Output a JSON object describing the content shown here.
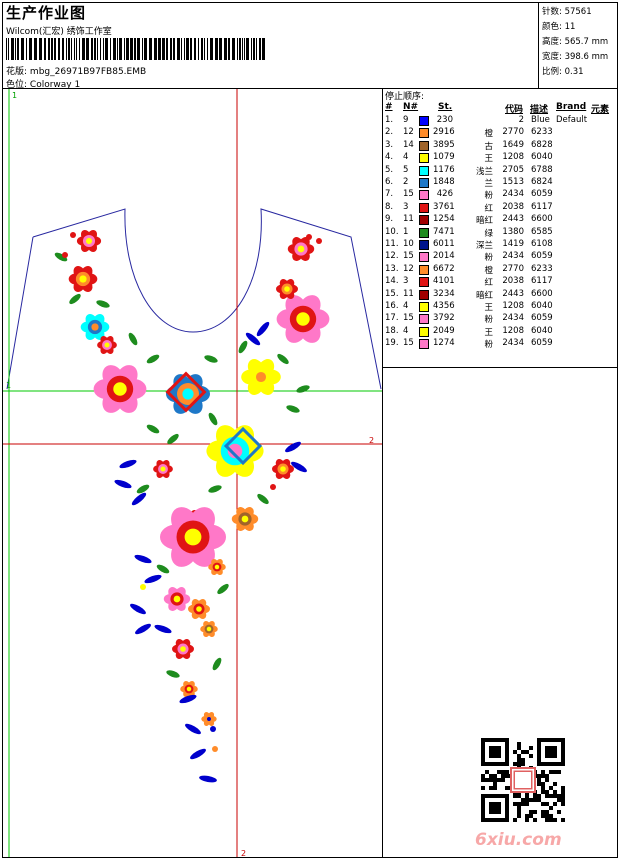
{
  "header": {
    "title": "生产作业图",
    "company": "Wilcom(汇宏) 绣饰工作室",
    "file_label": "花版:",
    "file_name": "mbg_26971B97FB85.EMB",
    "color_label": "色位:",
    "color_name": "Colorway 1"
  },
  "stats": [
    {
      "label": "针数:",
      "value": "57561"
    },
    {
      "label": "颜色:",
      "value": "11"
    },
    {
      "label": "高度:",
      "value": "565.7 mm"
    },
    {
      "label": "宽度:",
      "value": "398.6 mm"
    },
    {
      "label": "比例:",
      "value": "0.31"
    }
  ],
  "stop_list": {
    "title": "停止顺序:",
    "headers": {
      "num": "#",
      "needle": "N#",
      "st": "St.",
      "code": "代码",
      "desc": "描述",
      "brand": "Brand",
      "elem": "元素"
    },
    "rows": [
      {
        "n": "1.",
        "needle": "9",
        "color": "#0000ff",
        "st": "230",
        "name": "",
        "code": "2",
        "desc": "Blue",
        "brand": "Default"
      },
      {
        "n": "2.",
        "needle": "12",
        "color": "#ff8c2a",
        "st": "2916",
        "name": "橙",
        "code": "2770",
        "desc": "6233",
        "brand": ""
      },
      {
        "n": "3.",
        "needle": "14",
        "color": "#a0642a",
        "st": "3895",
        "name": "古",
        "code": "1649",
        "desc": "6828",
        "brand": ""
      },
      {
        "n": "4.",
        "needle": "4",
        "color": "#ffff00",
        "st": "1079",
        "name": "王",
        "code": "1208",
        "desc": "6040",
        "brand": ""
      },
      {
        "n": "5.",
        "needle": "5",
        "color": "#00ffff",
        "st": "1176",
        "name": "浅兰",
        "code": "2705",
        "desc": "6788",
        "brand": ""
      },
      {
        "n": "6.",
        "needle": "2",
        "color": "#1e78c8",
        "st": "1848",
        "name": "兰",
        "code": "1513",
        "desc": "6824",
        "brand": ""
      },
      {
        "n": "7.",
        "needle": "15",
        "color": "#ff78c8",
        "st": "426",
        "name": "粉",
        "code": "2434",
        "desc": "6059",
        "brand": ""
      },
      {
        "n": "8.",
        "needle": "3",
        "color": "#e01414",
        "st": "3761",
        "name": "红",
        "code": "2038",
        "desc": "6117",
        "brand": ""
      },
      {
        "n": "9.",
        "needle": "11",
        "color": "#a00000",
        "st": "1254",
        "name": "暗红",
        "code": "2443",
        "desc": "6600",
        "brand": ""
      },
      {
        "n": "10.",
        "needle": "1",
        "color": "#1e8c1e",
        "st": "7471",
        "name": "绿",
        "code": "1380",
        "desc": "6585",
        "brand": ""
      },
      {
        "n": "11.",
        "needle": "10",
        "color": "#00148c",
        "st": "6011",
        "name": "深兰",
        "code": "1419",
        "desc": "6108",
        "brand": ""
      },
      {
        "n": "12.",
        "needle": "15",
        "color": "#ff78c8",
        "st": "2014",
        "name": "粉",
        "code": "2434",
        "desc": "6059",
        "brand": ""
      },
      {
        "n": "13.",
        "needle": "12",
        "color": "#ff8c2a",
        "st": "6672",
        "name": "橙",
        "code": "2770",
        "desc": "6233",
        "brand": ""
      },
      {
        "n": "14.",
        "needle": "3",
        "color": "#e01414",
        "st": "4101",
        "name": "红",
        "code": "2038",
        "desc": "6117",
        "brand": ""
      },
      {
        "n": "15.",
        "needle": "11",
        "color": "#a00000",
        "st": "3234",
        "name": "暗红",
        "code": "2443",
        "desc": "6600",
        "brand": ""
      },
      {
        "n": "16.",
        "needle": "4",
        "color": "#ffff00",
        "st": "4356",
        "name": "王",
        "code": "1208",
        "desc": "6040",
        "brand": ""
      },
      {
        "n": "17.",
        "needle": "15",
        "color": "#ff78c8",
        "st": "3792",
        "name": "粉",
        "code": "2434",
        "desc": "6059",
        "brand": ""
      },
      {
        "n": "18.",
        "needle": "4",
        "color": "#ffff00",
        "st": "2049",
        "name": "王",
        "code": "1208",
        "desc": "6040",
        "brand": ""
      },
      {
        "n": "19.",
        "needle": "15",
        "color": "#ff78c8",
        "st": "1274",
        "name": "粉",
        "code": "2434",
        "desc": "6059",
        "brand": ""
      }
    ]
  },
  "guides": {
    "v1_label": "1",
    "h1_label": "1",
    "h2_label": "2",
    "v2_label": "2"
  },
  "brand": {
    "watermark": "6xiu.com"
  },
  "colors": {
    "outline": "#2828a0",
    "guide_green": "#00c800",
    "guide_red": "#c80000"
  }
}
